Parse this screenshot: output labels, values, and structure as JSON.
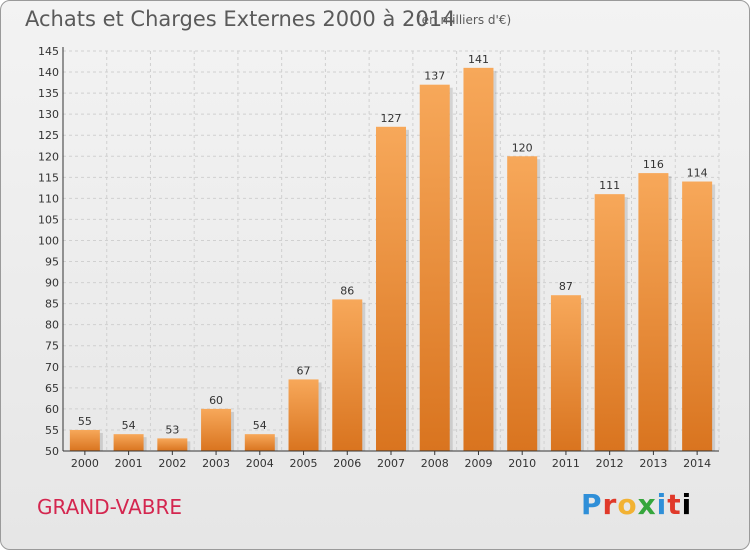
{
  "header": {
    "title": "Achats et Charges Externes 2000 à 2014",
    "subtitle": "(en milliers d'€)"
  },
  "footer": {
    "commune": "GRAND-VABRE",
    "logo_letters": [
      "P",
      "r",
      "o",
      "x",
      "i",
      "t",
      "i"
    ]
  },
  "colors": {
    "bar_top": "#f7a85a",
    "bar_bottom": "#d9741f",
    "grid": "#d0d0d0",
    "commune_text": "#d4264f"
  },
  "chart_data": {
    "type": "bar",
    "title": "Achats et Charges Externes 2000 à 2014",
    "subtitle": "(en milliers d'€)",
    "categories": [
      "2000",
      "2001",
      "2002",
      "2003",
      "2004",
      "2005",
      "2006",
      "2007",
      "2008",
      "2009",
      "2010",
      "2011",
      "2012",
      "2013",
      "2014"
    ],
    "values": [
      55,
      54,
      53,
      60,
      54,
      67,
      86,
      127,
      137,
      141,
      120,
      87,
      111,
      116,
      114
    ],
    "ylim": [
      50,
      145
    ],
    "yticks": [
      50,
      55,
      60,
      65,
      70,
      75,
      80,
      85,
      90,
      95,
      100,
      105,
      110,
      115,
      120,
      125,
      130,
      135,
      140,
      145
    ],
    "grid": true,
    "data_labels": true
  }
}
